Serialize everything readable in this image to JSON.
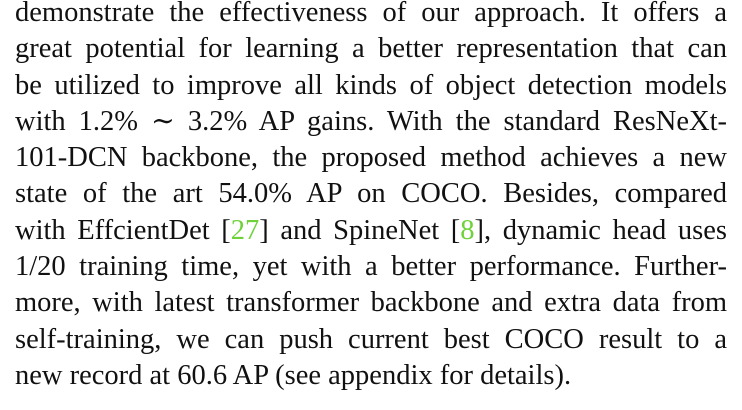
{
  "paragraph": {
    "lines": [
      [
        "demonstrate the effectiveness of our approach.  It offers a"
      ],
      [
        "great potential for learning a better representation that can"
      ],
      [
        "be utilized to improve all kinds of object detection models"
      ],
      [
        "with 1.2% ∼ 3.2% AP gains. With the standard ResNeXt-"
      ],
      [
        "101-DCN backbone, the proposed method achieves a new"
      ],
      [
        "state of the art 54.0% AP on COCO. Besides, compared"
      ],
      [
        "with EffcientDet [",
        "27",
        "] and SpineNet [",
        "8",
        "], dynamic head uses"
      ],
      [
        "1/20 training time, yet with a better performance. Further-"
      ],
      [
        "more, with latest transformer backbone and extra data from"
      ],
      [
        "self-training, we can push current best COCO result to a"
      ],
      [
        "new record at 60.6 AP (see appendix for details)."
      ]
    ]
  }
}
